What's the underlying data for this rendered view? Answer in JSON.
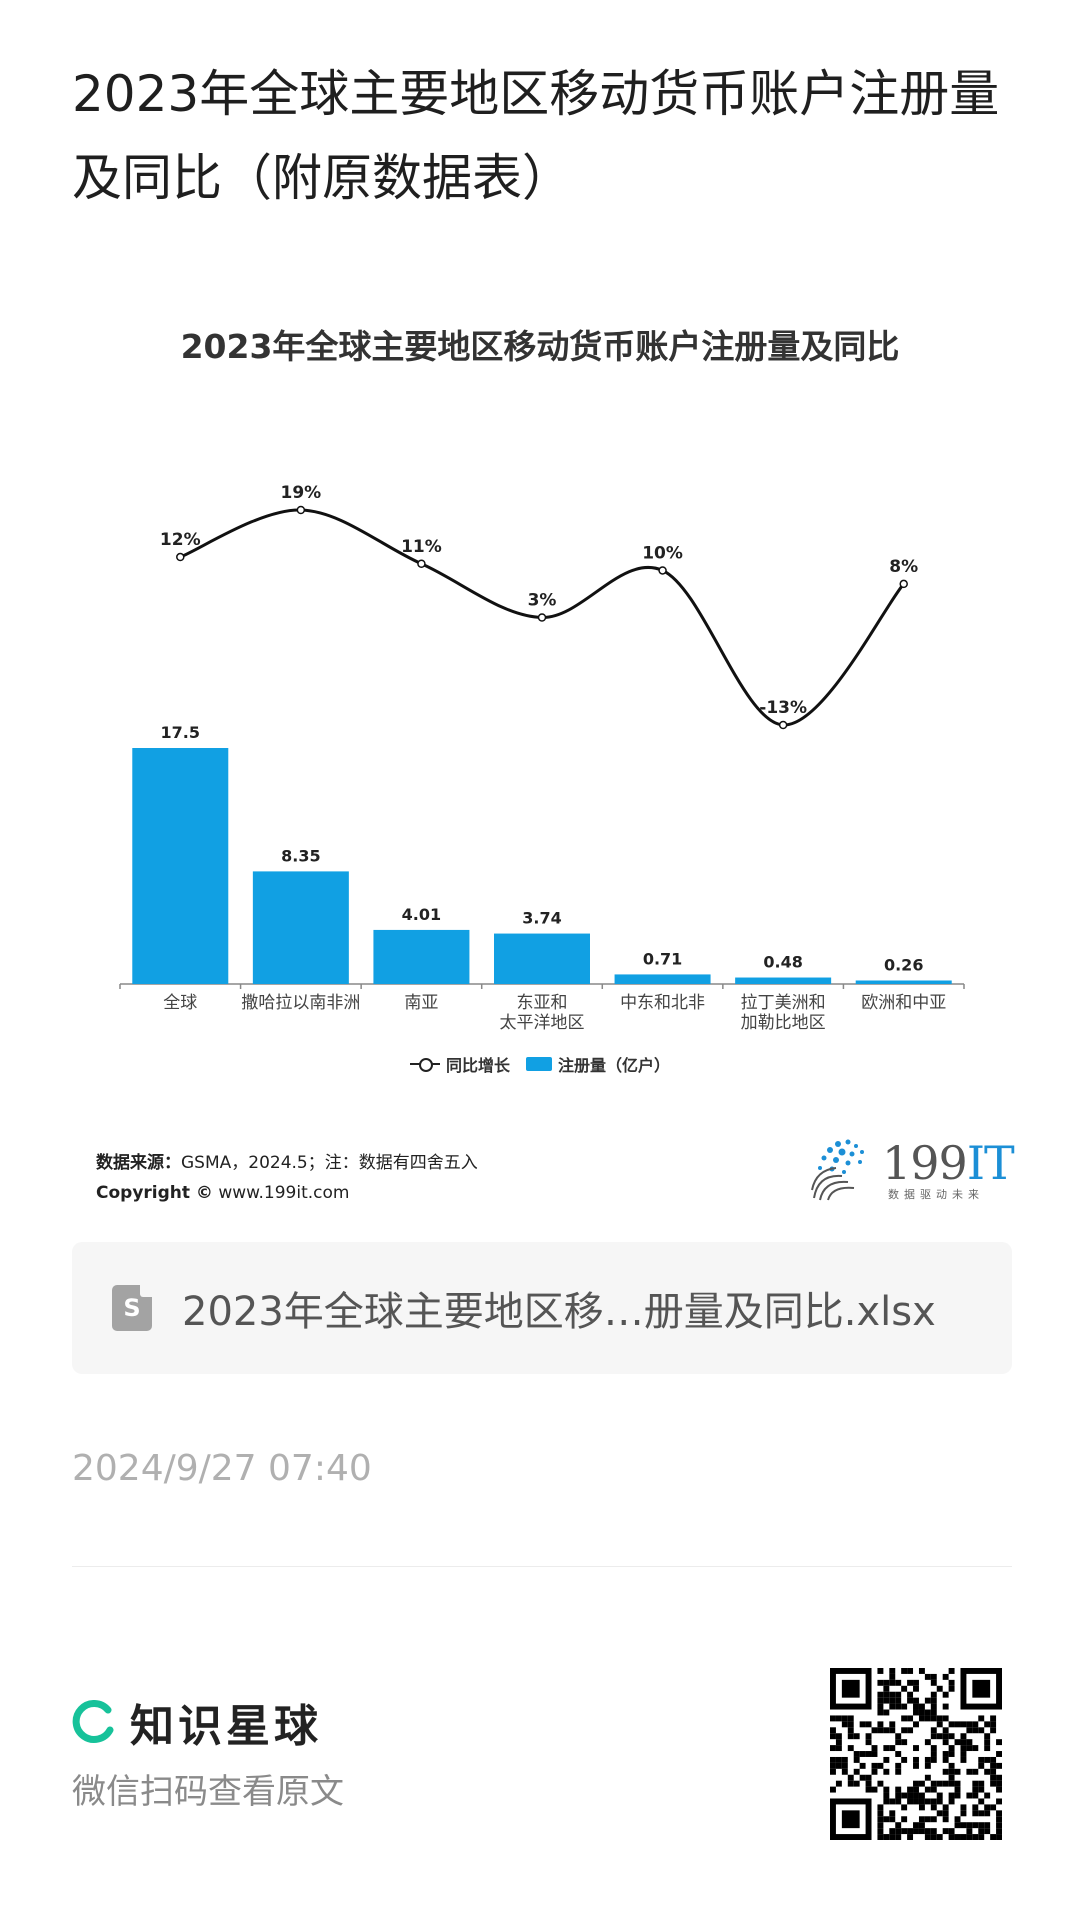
{
  "post": {
    "title": "2023年全球主要地区移动货币账户注册量及同比（附原数据表）"
  },
  "chart_data": {
    "type": "bar",
    "title": "2023年全球主要地区移动货币账户注册量及同比",
    "categories": [
      [
        "全球"
      ],
      [
        "撒哈拉以南非洲"
      ],
      [
        "南亚"
      ],
      [
        "东亚和",
        "太平洋地区"
      ],
      [
        "中东和北非"
      ],
      [
        "拉丁美洲和",
        "加勒比地区"
      ],
      [
        "欧洲和中亚"
      ]
    ],
    "series": [
      {
        "name": "注册量（亿户）",
        "type": "bar",
        "values": [
          17.5,
          8.35,
          4.01,
          3.74,
          0.71,
          0.48,
          0.26
        ],
        "labels": [
          "17.5",
          "8.35",
          "4.01",
          "3.74",
          "0.71",
          "0.48",
          "0.26"
        ],
        "color": "#11a0e3"
      },
      {
        "name": "同比增长",
        "type": "line",
        "values": [
          12,
          19,
          11,
          3,
          10,
          -13,
          8
        ],
        "labels": [
          "12%",
          "19%",
          "11%",
          "3%",
          "10%",
          "-13%",
          "8%"
        ],
        "color": "#111111"
      }
    ],
    "legend": {
      "placement": "bottom",
      "line_label": "同比增长",
      "bar_label": "注册量（亿户）"
    },
    "grid": false
  },
  "source": {
    "label": "数据来源：",
    "text": "GSMA，2024.5；注：数据有四舍五入",
    "copyright_label": "Copyright ©",
    "copyright_url": "www.199it.com"
  },
  "logo": {
    "main": "199",
    "accent": "IT",
    "tagline": "数据驱动未来"
  },
  "file": {
    "icon": "S",
    "name": "2023年全球主要地区移…册量及同比.xlsx"
  },
  "date": "2024/9/27 07:40",
  "footer": {
    "brand": "知识星球",
    "hint": "微信扫码查看原文"
  },
  "icons": {
    "file": "spreadsheet-file-icon",
    "brand": "zsxq-ring-icon",
    "qr": "qr-code-icon"
  },
  "colors": {
    "bar": "#11a0e3",
    "line": "#111111",
    "brand": "#17c29a"
  }
}
